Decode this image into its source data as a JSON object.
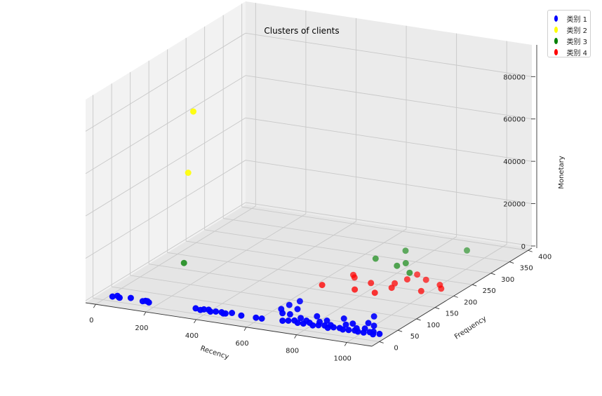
{
  "chart_data": {
    "type": "scatter",
    "title": "Clusters of clients",
    "xlabel": "Recency",
    "ylabel": "Frequency",
    "zlabel": "Monetary",
    "xticks": [
      "0",
      "200",
      "400",
      "600",
      "800",
      "1000"
    ],
    "yticks": [
      "0",
      "50",
      "100",
      "150",
      "200",
      "250",
      "300",
      "350",
      "400"
    ],
    "zticks": [
      "0",
      "20000",
      "40000",
      "60000",
      "80000"
    ],
    "xlim": [
      -40,
      1100
    ],
    "ylim": [
      -20,
      410
    ],
    "zlim": [
      -1000,
      95000
    ],
    "grid": true,
    "legend_position": "top-right",
    "series": [
      {
        "name": "类别 1",
        "color": "#0000ff",
        "points": [
          [
            30,
            5,
            500
          ],
          [
            45,
            8,
            800
          ],
          [
            55,
            6,
            400
          ],
          [
            60,
            4,
            600
          ],
          [
            100,
            7,
            900
          ],
          [
            150,
            5,
            500
          ],
          [
            160,
            6,
            700
          ],
          [
            165,
            8,
            400
          ],
          [
            175,
            5,
            300
          ],
          [
            360,
            6,
            800
          ],
          [
            380,
            5,
            500
          ],
          [
            390,
            8,
            600
          ],
          [
            410,
            7,
            900
          ],
          [
            420,
            5,
            400
          ],
          [
            440,
            6,
            700
          ],
          [
            460,
            8,
            500
          ],
          [
            470,
            6,
            300
          ],
          [
            480,
            5,
            600
          ],
          [
            500,
            9,
            800
          ],
          [
            540,
            7,
            500
          ],
          [
            600,
            6,
            700
          ],
          [
            620,
            8,
            400
          ],
          [
            650,
            40,
            2000
          ],
          [
            660,
            55,
            2500
          ],
          [
            670,
            30,
            1500
          ],
          [
            680,
            70,
            3000
          ],
          [
            700,
            50,
            1800
          ],
          [
            700,
            10,
            600
          ],
          [
            720,
            12,
            800
          ],
          [
            740,
            15,
            900
          ],
          [
            760,
            10,
            700
          ],
          [
            780,
            12,
            500
          ],
          [
            800,
            15,
            900
          ],
          [
            820,
            10,
            600
          ],
          [
            840,
            12,
            800
          ],
          [
            860,
            15,
            700
          ],
          [
            880,
            10,
            500
          ],
          [
            900,
            12,
            900
          ],
          [
            920,
            15,
            600
          ],
          [
            940,
            10,
            800
          ],
          [
            960,
            12,
            700
          ],
          [
            980,
            15,
            500
          ],
          [
            1000,
            10,
            900
          ],
          [
            1020,
            12,
            600
          ],
          [
            1040,
            15,
            800
          ],
          [
            1060,
            10,
            700
          ],
          [
            700,
            30,
            1500
          ],
          [
            750,
            25,
            1200
          ],
          [
            800,
            35,
            1800
          ],
          [
            850,
            28,
            1400
          ],
          [
            900,
            40,
            2000
          ],
          [
            950,
            30,
            1600
          ],
          [
            1000,
            38,
            1900
          ],
          [
            1030,
            33,
            1700
          ],
          [
            780,
            20,
            1000
          ],
          [
            830,
            22,
            1100
          ],
          [
            880,
            18,
            900
          ],
          [
            930,
            25,
            1300
          ],
          [
            980,
            20,
            1000
          ],
          [
            1010,
            22,
            1200
          ],
          [
            1050,
            18,
            900
          ],
          [
            1080,
            14,
            800
          ],
          [
            990,
            60,
            2500
          ]
        ]
      },
      {
        "name": "类别 2",
        "color": "#ffff00",
        "points": [
          [
            250,
            60,
            57000
          ],
          [
            300,
            40,
            89000
          ]
        ]
      },
      {
        "name": "类别 3",
        "color": "#008000",
        "points": [
          [
            100,
            150,
            2000
          ],
          [
            700,
            260,
            3000
          ],
          [
            760,
            300,
            3500
          ],
          [
            800,
            250,
            2500
          ],
          [
            820,
            260,
            3000
          ],
          [
            880,
            230,
            2800
          ],
          [
            960,
            330,
            4000
          ]
        ]
      },
      {
        "name": "类别 4",
        "color": "#ff0000",
        "points": [
          [
            650,
            150,
            1500
          ],
          [
            700,
            200,
            1800
          ],
          [
            720,
            190,
            2000
          ],
          [
            780,
            150,
            1700
          ],
          [
            800,
            180,
            1900
          ],
          [
            860,
            150,
            1600
          ],
          [
            880,
            190,
            2100
          ],
          [
            890,
            175,
            1800
          ],
          [
            900,
            210,
            2200
          ],
          [
            910,
            230,
            2500
          ],
          [
            960,
            220,
            2000
          ],
          [
            1000,
            180,
            1700
          ],
          [
            1030,
            210,
            1900
          ],
          [
            1050,
            200,
            1600
          ]
        ]
      }
    ]
  }
}
